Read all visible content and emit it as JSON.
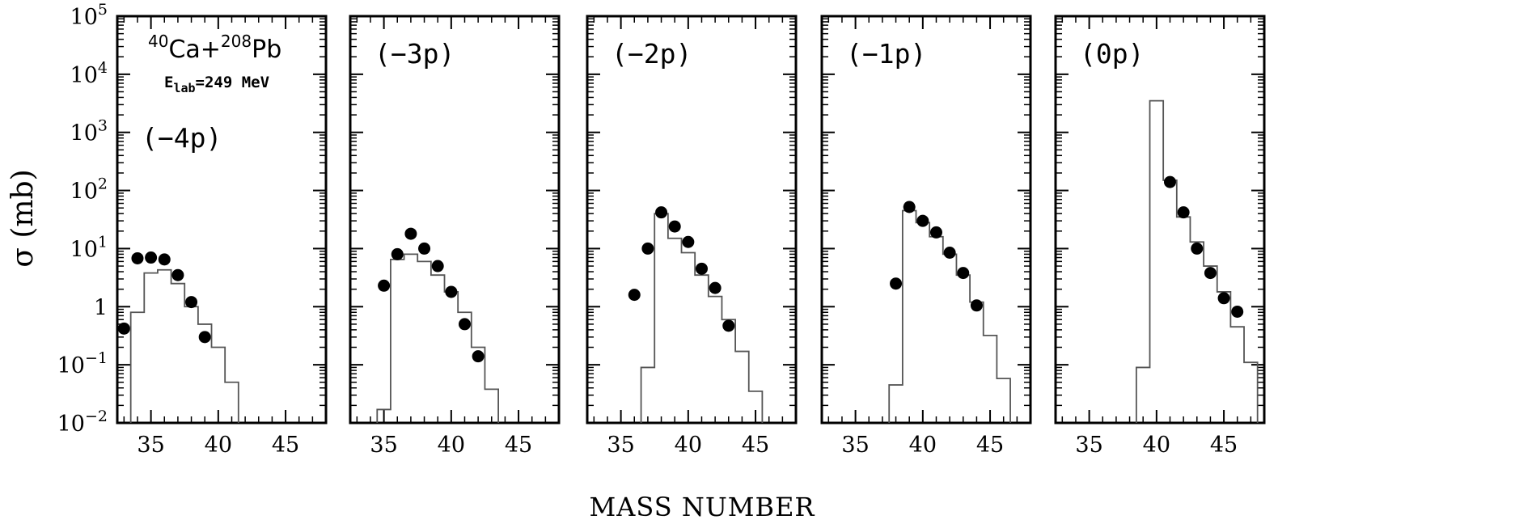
{
  "chart_data": {
    "type": "scatter",
    "layout": "five log-scale panels side by side, shared y axis",
    "xlabel": "MASS NUMBER",
    "ylabel": "σ (mb)",
    "y_scale": "log",
    "ylim": [
      0.01,
      100000
    ],
    "xlim": [
      32.5,
      48
    ],
    "x_ticks": [
      35,
      40,
      45
    ],
    "y_ticks": [
      {
        "value": 100000,
        "base": "10",
        "exp": "5"
      },
      {
        "value": 10000,
        "base": "10",
        "exp": "4"
      },
      {
        "value": 1000,
        "base": "10",
        "exp": "3"
      },
      {
        "value": 100,
        "base": "10",
        "exp": "2"
      },
      {
        "value": 10,
        "base": "10",
        "exp": "1"
      },
      {
        "value": 1,
        "base": "1",
        "exp": ""
      },
      {
        "value": 0.1,
        "base": "10",
        "exp": "−1"
      },
      {
        "value": 0.01,
        "base": "10",
        "exp": "−2"
      }
    ],
    "annotation": {
      "reaction": {
        "a1": "40",
        "s1": "Ca+",
        "a2": "208",
        "s2": "Pb"
      },
      "energy": {
        "E": "E",
        "sub": "lab",
        "rest": "=249 MeV"
      }
    },
    "panels": [
      {
        "label": "(−4p)",
        "points": [
          {
            "x": 33,
            "y": 0.42
          },
          {
            "x": 34,
            "y": 6.8
          },
          {
            "x": 35,
            "y": 7.0
          },
          {
            "x": 36,
            "y": 6.5
          },
          {
            "x": 37,
            "y": 3.5
          },
          {
            "x": 38,
            "y": 1.2
          },
          {
            "x": 39,
            "y": 0.3
          }
        ],
        "histogram": {
          "edges": [
            33.5,
            34.5,
            35.5,
            36.5,
            37.5,
            38.5,
            39.5,
            40.5,
            41.5
          ],
          "values": [
            0.8,
            3.8,
            4.3,
            2.5,
            1.0,
            0.5,
            0.2,
            0.05
          ]
        }
      },
      {
        "label": "(−3p)",
        "points": [
          {
            "x": 35,
            "y": 2.3
          },
          {
            "x": 36,
            "y": 8.0
          },
          {
            "x": 37,
            "y": 18
          },
          {
            "x": 38,
            "y": 10
          },
          {
            "x": 39,
            "y": 5.0
          },
          {
            "x": 40,
            "y": 1.8
          },
          {
            "x": 41,
            "y": 0.5
          },
          {
            "x": 42,
            "y": 0.14
          }
        ],
        "histogram": {
          "edges": [
            34.5,
            35.5,
            36.5,
            37.5,
            38.5,
            39.5,
            40.5,
            41.5,
            42.5,
            43.5
          ],
          "values": [
            0.017,
            6.5,
            8.0,
            6.0,
            3.5,
            1.8,
            0.8,
            0.2,
            0.038
          ]
        }
      },
      {
        "label": "(−2p)",
        "points": [
          {
            "x": 36,
            "y": 1.6
          },
          {
            "x": 37,
            "y": 10
          },
          {
            "x": 38,
            "y": 42
          },
          {
            "x": 39,
            "y": 24
          },
          {
            "x": 40,
            "y": 13
          },
          {
            "x": 41,
            "y": 4.5
          },
          {
            "x": 42,
            "y": 2.1
          },
          {
            "x": 43,
            "y": 0.47
          }
        ],
        "histogram": {
          "edges": [
            36.5,
            37.5,
            38.5,
            39.5,
            40.5,
            41.5,
            42.5,
            43.5,
            44.5,
            45.5
          ],
          "values": [
            0.09,
            40,
            15,
            8.5,
            3.5,
            1.5,
            0.6,
            0.17,
            0.035
          ]
        }
      },
      {
        "label": "(−1p)",
        "points": [
          {
            "x": 38,
            "y": 2.5
          },
          {
            "x": 39,
            "y": 52
          },
          {
            "x": 40,
            "y": 30
          },
          {
            "x": 41,
            "y": 19
          },
          {
            "x": 42,
            "y": 8.5
          },
          {
            "x": 43,
            "y": 3.8
          },
          {
            "x": 44,
            "y": 1.05
          }
        ],
        "histogram": {
          "edges": [
            37.5,
            38.5,
            39.5,
            40.5,
            41.5,
            42.5,
            43.5,
            44.5,
            45.5,
            46.5
          ],
          "values": [
            0.045,
            45,
            28,
            16,
            8.0,
            3.5,
            1.2,
            0.32,
            0.058
          ]
        }
      },
      {
        "label": "(0p)",
        "points": [
          {
            "x": 41,
            "y": 140
          },
          {
            "x": 42,
            "y": 42
          },
          {
            "x": 43,
            "y": 10
          },
          {
            "x": 44,
            "y": 3.8
          },
          {
            "x": 45,
            "y": 1.4
          },
          {
            "x": 46,
            "y": 0.82
          }
        ],
        "histogram": {
          "edges": [
            38.5,
            39.5,
            40.5,
            41.5,
            42.5,
            43.5,
            44.5,
            45.5,
            46.5,
            47.5
          ],
          "values": [
            0.09,
            3500,
            150,
            35,
            13,
            5.0,
            1.8,
            0.45,
            0.11
          ]
        }
      }
    ]
  }
}
